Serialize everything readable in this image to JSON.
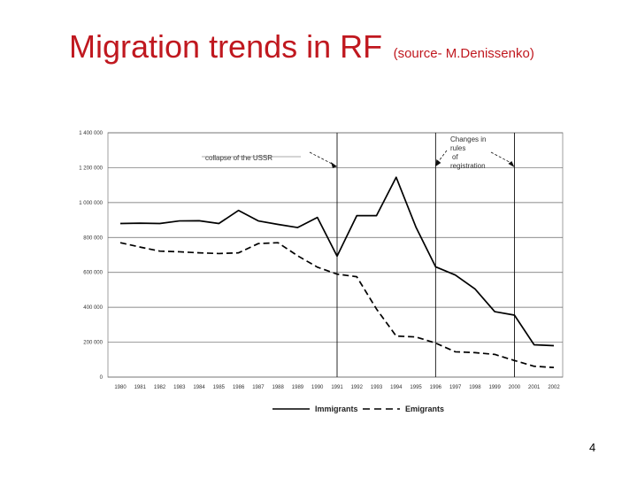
{
  "slide": {
    "title": "Migration trends in RF",
    "source": "(source- M.Denissenko)",
    "page_number": "4"
  },
  "chart_data": {
    "type": "line",
    "x": [
      1980,
      1981,
      1982,
      1983,
      1984,
      1985,
      1986,
      1987,
      1988,
      1989,
      1990,
      1991,
      1992,
      1993,
      1994,
      1995,
      1996,
      1997,
      1998,
      1999,
      2000,
      2001,
      2002
    ],
    "x_tick_labels": [
      "1980",
      "1981",
      "1982",
      "1983",
      "1984",
      "1985",
      "1986",
      "1987",
      "1988",
      "1989",
      "1990",
      "1991",
      "1992",
      "1993",
      "1994",
      "1995",
      "1996",
      "1997",
      "1998",
      "1999",
      "2000",
      "2001",
      "2002"
    ],
    "y_tick_labels": [
      "0",
      "200 000",
      "400 000",
      "600 000",
      "800 000",
      "1 000 000",
      "1 200 000",
      "1 400 000"
    ],
    "ylim": [
      0,
      1400000
    ],
    "grid": true,
    "legend": "bottom",
    "series": [
      {
        "name": "Immigrants",
        "style": "solid",
        "color": "#000000",
        "values": [
          880000,
          882000,
          880000,
          895000,
          896000,
          880000,
          955000,
          895000,
          875000,
          857000,
          915000,
          693000,
          925000,
          925000,
          1145000,
          860000,
          632000,
          585000,
          505000,
          375000,
          355000,
          185000,
          180000
        ]
      },
      {
        "name": "Emigrants",
        "style": "dashed",
        "color": "#000000",
        "values": [
          770000,
          745000,
          722000,
          718000,
          712000,
          708000,
          712000,
          765000,
          770000,
          695000,
          630000,
          590000,
          575000,
          390000,
          235000,
          230000,
          195000,
          145000,
          140000,
          130000,
          95000,
          62000,
          55000
        ]
      }
    ],
    "annotations": [
      {
        "text": "collapse of the USSR",
        "x": 1991
      },
      {
        "text": "Changes in rules of registration",
        "lines": [
          "Changes   in",
          "rules",
          "of",
          "registration"
        ],
        "x": 1996
      }
    ],
    "reference_lines_x": [
      1991,
      1996,
      2000
    ]
  }
}
